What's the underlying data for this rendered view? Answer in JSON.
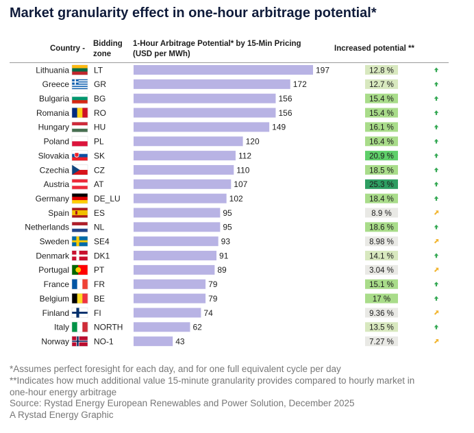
{
  "title": "Market granularity effect in one-hour arbitrage potential*",
  "headers": {
    "country": "Country -",
    "zone_line1": "Bidding",
    "zone_line2": "zone",
    "potential_line1": "1-Hour Arbitrage Potential* by 15-Min Pricing",
    "potential_line2": "(USD per MWh)",
    "increase": "Increased potential **"
  },
  "colors": {
    "bar": "#b8b3e4",
    "increase_scale": [
      "#e9e9e5",
      "#d8e8bf",
      "#a9dc8a",
      "#5fcf6a",
      "#2e9e62"
    ],
    "arrow_up": "#34a853",
    "arrow_diag": "#f2b632"
  },
  "chart_data": {
    "type": "bar",
    "orientation": "horizontal",
    "categories": [
      "Lithuania",
      "Greece",
      "Bulgaria",
      "Romania",
      "Hungary",
      "Poland",
      "Slovakia",
      "Czechia",
      "Austria",
      "Germany",
      "Spain",
      "Netherlands",
      "Sweden",
      "Denmark",
      "Portugal",
      "France",
      "Belgium",
      "Finland",
      "Italy",
      "Norway"
    ],
    "zones": [
      "LT",
      "GR",
      "BG",
      "RO",
      "HU",
      "PL",
      "SK",
      "CZ",
      "AT",
      "DE_LU",
      "ES",
      "NL",
      "SE4",
      "DK1",
      "PT",
      "FR",
      "BE",
      "FI",
      "NORTH",
      "NO-1"
    ],
    "values": [
      197,
      172,
      156,
      156,
      149,
      120,
      112,
      110,
      107,
      102,
      95,
      95,
      93,
      91,
      89,
      79,
      79,
      74,
      62,
      43
    ],
    "increase_labels": [
      "12.8 %",
      "12.7 %",
      "15.4 %",
      "15.4 %",
      "16.1 %",
      "16.4 %",
      "20.9 %",
      "18.5 %",
      "25.3 %",
      "18.4 %",
      "8.9 %",
      "18.6 %",
      "8.98 %",
      "14.1 %",
      "3.04 %",
      "15.1 %",
      "17 %",
      "9.36 %",
      "13.5 %",
      "7.27 %"
    ],
    "increase_values": [
      12.8,
      12.7,
      15.4,
      15.4,
      16.1,
      16.4,
      20.9,
      18.5,
      25.3,
      18.4,
      8.9,
      18.6,
      8.98,
      14.1,
      3.04,
      15.1,
      17,
      9.36,
      13.5,
      7.27
    ],
    "trend": [
      "up",
      "up",
      "up",
      "up",
      "up",
      "up",
      "up",
      "up",
      "up",
      "up",
      "diag",
      "up",
      "diag",
      "up",
      "diag",
      "up",
      "up",
      "diag",
      "up",
      "diag"
    ],
    "xlim": [
      0,
      197
    ],
    "grid": false,
    "legend": "none"
  },
  "footnotes": [
    "*Assumes perfect foresight for each day, and for one full equivalent cycle per day",
    "**Indicates how much additional value 15-minute granularity provides compared to hourly market in",
    "one-hour energy arbitrage",
    "Source: Rystad Energy European Renewables and Power Solution, December 2025",
    "A Rystad Energy Graphic"
  ]
}
